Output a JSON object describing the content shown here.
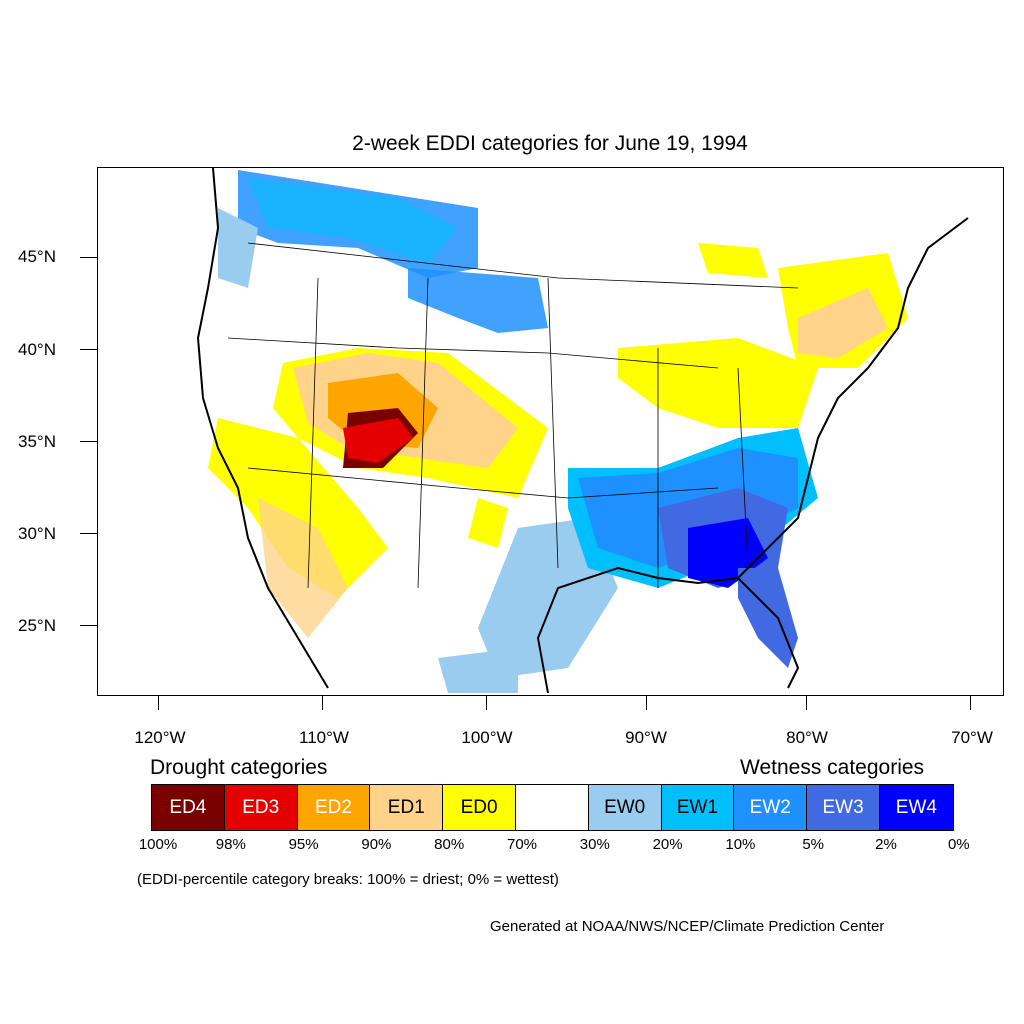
{
  "title": "2-week EDDI categories for June 19, 1994",
  "map": {
    "projection": "lambert-conformal",
    "extent": {
      "lon_min": -124,
      "lon_max": -68.5,
      "lat_min": 21,
      "lat_max": 50
    },
    "lat_labels": [
      "45°N",
      "40°N",
      "35°N",
      "30°N",
      "25°N"
    ],
    "lon_labels": [
      "120°W",
      "110°W",
      "100°W",
      "90°W",
      "80°W",
      "70°W"
    ],
    "regions": [
      {
        "name": "pacific-northwest",
        "category": "EW2"
      },
      {
        "name": "northern-plains",
        "category": "EW2"
      },
      {
        "name": "colorado-utah",
        "category": "ED4"
      },
      {
        "name": "central-rockies",
        "category": "ED1"
      },
      {
        "name": "southwest",
        "category": "ED0"
      },
      {
        "name": "lower-mississippi",
        "category": "EW2"
      },
      {
        "name": "georgia",
        "category": "EW4"
      },
      {
        "name": "florida",
        "category": "EW3"
      },
      {
        "name": "texas-gulf",
        "category": "EW0"
      },
      {
        "name": "great-lakes",
        "category": "ED0"
      },
      {
        "name": "new-england",
        "category": "ED1"
      }
    ]
  },
  "legend": {
    "drought_heading": "Drought categories",
    "wetness_heading": "Wetness categories",
    "categories": [
      {
        "label": "ED4",
        "color": "#7a0000",
        "text_color": "#ffffff"
      },
      {
        "label": "ED3",
        "color": "#e50000",
        "text_color": "#ffffff"
      },
      {
        "label": "ED2",
        "color": "#ffa500",
        "text_color": "#ffffff"
      },
      {
        "label": "ED1",
        "color": "#ffd38a",
        "text_color": "#000000"
      },
      {
        "label": "ED0",
        "color": "#ffff00",
        "text_color": "#000000"
      },
      {
        "label": "",
        "color": "#ffffff",
        "text_color": "#000000"
      },
      {
        "label": "EW0",
        "color": "#99ccee",
        "text_color": "#000000"
      },
      {
        "label": "EW1",
        "color": "#00bfff",
        "text_color": "#000000"
      },
      {
        "label": "EW2",
        "color": "#1e90ff",
        "text_color": "#ffffff"
      },
      {
        "label": "EW3",
        "color": "#4169e1",
        "text_color": "#ffffff"
      },
      {
        "label": "EW4",
        "color": "#0000ff",
        "text_color": "#ffffff"
      }
    ],
    "breaks": [
      "100%",
      "98%",
      "95%",
      "90%",
      "80%",
      "70%",
      "30%",
      "20%",
      "10%",
      "5%",
      "2%",
      "0%"
    ],
    "note": "(EDDI-percentile category breaks: 100% = driest; 0% = wettest)"
  },
  "credit": "Generated at NOAA/NWS/NCEP/Climate Prediction Center"
}
